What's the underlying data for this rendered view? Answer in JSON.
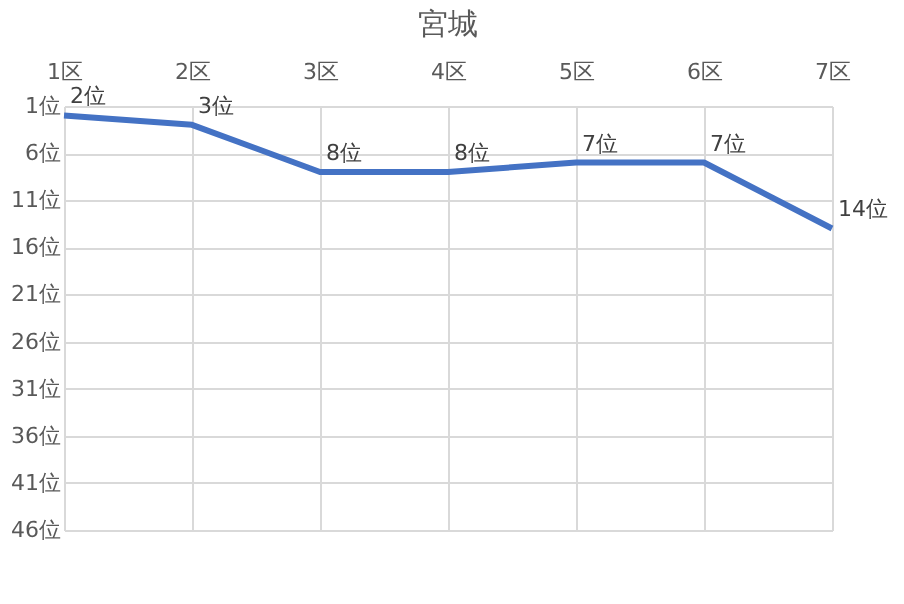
{
  "chart_data": {
    "type": "line",
    "title": "宮城",
    "categories": [
      "1区",
      "2区",
      "3区",
      "4区",
      "5区",
      "6区",
      "7区"
    ],
    "series": [
      {
        "color": "#4472c4",
        "values": [
          2,
          3,
          8,
          8,
          7,
          7,
          14
        ],
        "value_labels": [
          "2位",
          "3位",
          "8位",
          "8位",
          "7位",
          "7位",
          "14位"
        ]
      }
    ],
    "ylim": [
      46,
      1
    ],
    "yticks": [
      {
        "value": 1,
        "label": "1位"
      },
      {
        "value": 6,
        "label": "6位"
      },
      {
        "value": 11,
        "label": "11位"
      },
      {
        "value": 16,
        "label": "16位"
      },
      {
        "value": 21,
        "label": "21位"
      },
      {
        "value": 26,
        "label": "26位"
      },
      {
        "value": 31,
        "label": "31位"
      },
      {
        "value": 36,
        "label": "36位"
      },
      {
        "value": 41,
        "label": "41位"
      },
      {
        "value": 46,
        "label": "46位"
      }
    ],
    "grid": true,
    "marker": "none",
    "line_style": "solid"
  }
}
